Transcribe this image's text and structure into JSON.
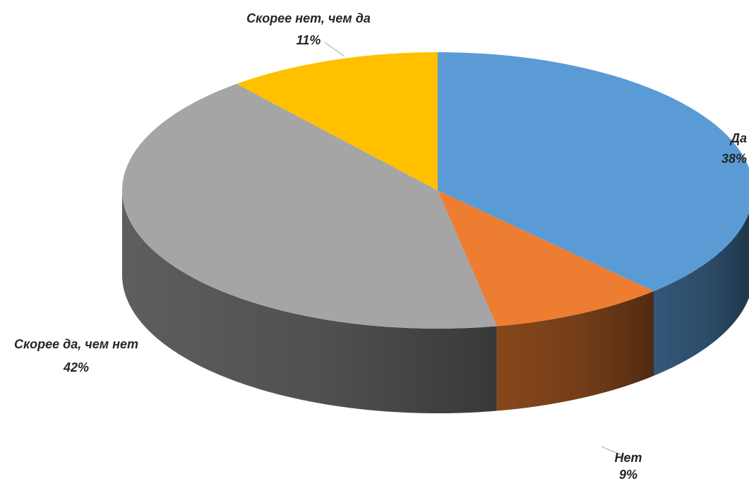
{
  "chart_data": {
    "type": "pie",
    "style": "3d",
    "title": "",
    "categories": [
      "Да",
      "Нет",
      "Скорее да, чем нет",
      "Скорее нет, чем да"
    ],
    "values": [
      38,
      9,
      42,
      11
    ],
    "value_labels": [
      "38%",
      "9%",
      "42%",
      "11%"
    ],
    "colors": [
      "#5b9bd5",
      "#ed7d31",
      "#a5a5a5",
      "#ffc000"
    ],
    "legend": "none",
    "start": "top, clockwise"
  }
}
